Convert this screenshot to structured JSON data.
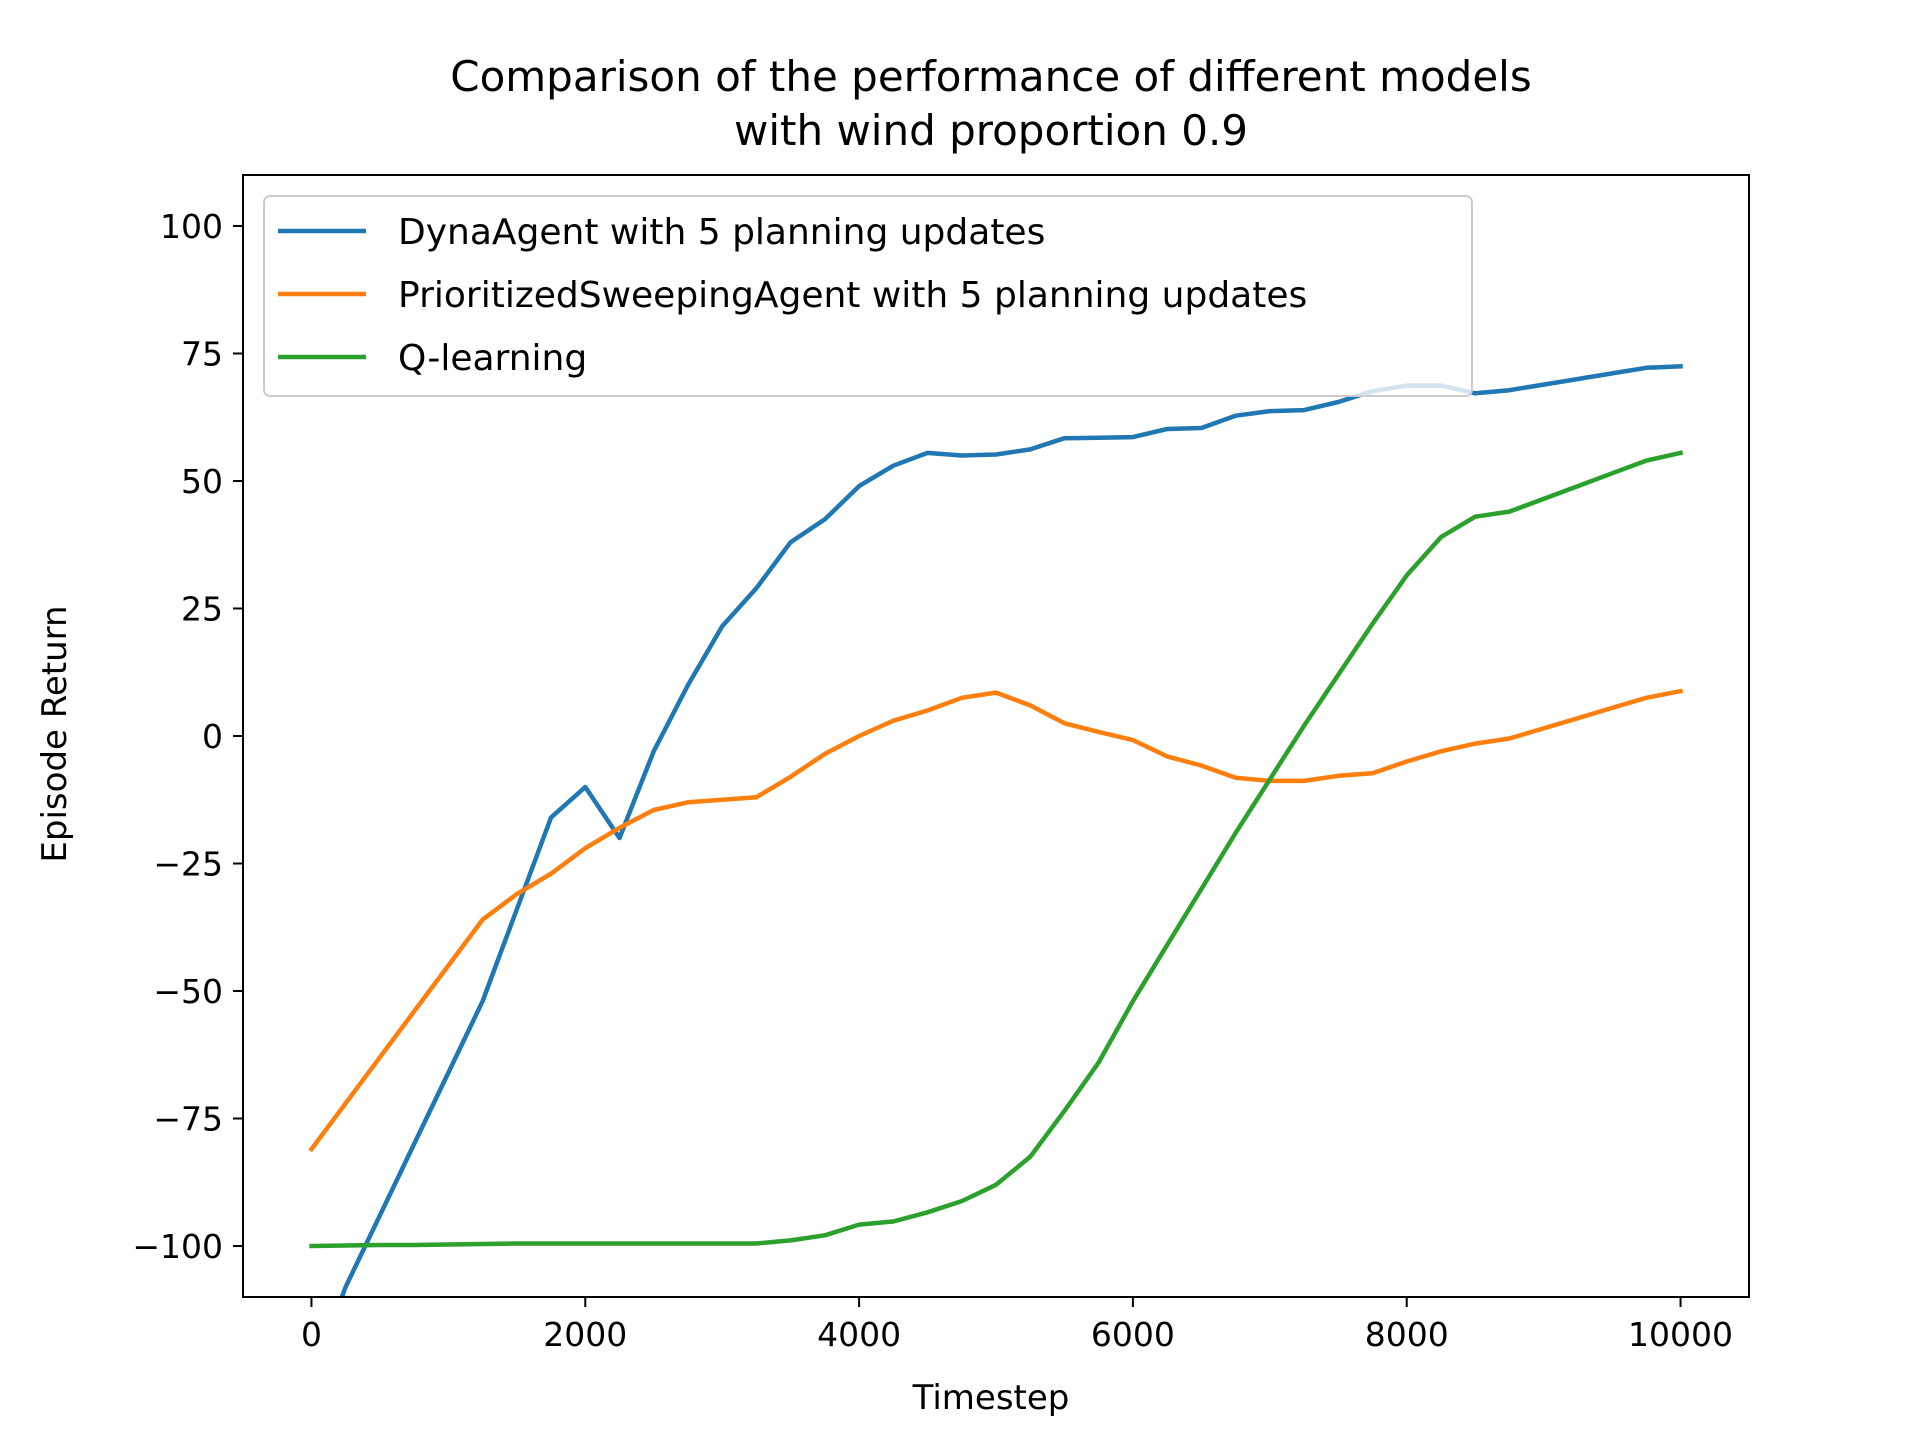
{
  "chart_data": {
    "type": "line",
    "title": "Comparison of the performance of different models\nwith wind proportion 0.9",
    "title_lines": [
      "Comparison of the performance of different models",
      "with wind proportion 0.9"
    ],
    "xlabel": "Timestep",
    "ylabel": "Episode Return",
    "xlim": [
      -500,
      10500
    ],
    "ylim": [
      -110,
      110
    ],
    "xticks": [
      0,
      2000,
      4000,
      6000,
      8000,
      10000
    ],
    "xtick_labels": [
      "0",
      "2000",
      "4000",
      "6000",
      "8000",
      "10000"
    ],
    "yticks": [
      100,
      75,
      50,
      25,
      0,
      -25,
      -50,
      -75,
      -100
    ],
    "ytick_labels": [
      "100",
      "75",
      "50",
      "25",
      "0",
      "−25",
      "−50",
      "−75",
      "−100"
    ],
    "grid": false,
    "legend_position": "top-left",
    "x": [
      0,
      250,
      500,
      750,
      1000,
      1250,
      1500,
      1750,
      2000,
      2250,
      2500,
      2750,
      3000,
      3250,
      3500,
      3750,
      4000,
      4250,
      4500,
      4750,
      5000,
      5250,
      5500,
      5750,
      6000,
      6250,
      6500,
      6750,
      7000,
      7250,
      7500,
      7750,
      8000,
      8250,
      8500,
      8750,
      9000,
      9250,
      9500,
      9750,
      10000
    ],
    "series": [
      {
        "name": "DynaAgent with 5 planning updates",
        "color": "#1f77b4",
        "values": [
          -126,
          -108,
          -94,
          -80,
          -66,
          -52,
          -34,
          -16,
          -10,
          -20,
          -3,
          10,
          21.5,
          29,
          38,
          42.5,
          49,
          53,
          55.5,
          55,
          55.2,
          56.2,
          58.4,
          58.5,
          58.6,
          60.2,
          60.4,
          62.8,
          63.7,
          63.9,
          65.5,
          67.6,
          68.7,
          68.7,
          67.2,
          67.8,
          68.9,
          70,
          71.1,
          72.2,
          72.5
        ]
      },
      {
        "name": "PrioritizedSweepingAgent with 5 planning updates",
        "color": "#ff7f0e",
        "values": [
          -81,
          -72,
          -63,
          -54,
          -45,
          -36,
          -31,
          -27,
          -22,
          -18,
          -14.5,
          -13,
          -12.5,
          -12,
          -8,
          -3.5,
          0,
          3,
          5,
          7.5,
          8.5,
          6,
          2.5,
          0.8,
          -0.8,
          -4,
          -5.8,
          -8.2,
          -8.8,
          -8.8,
          -7.8,
          -7.3,
          -5,
          -3,
          -1.5,
          -0.5,
          1.5,
          3.5,
          5.5,
          7.5,
          8.8
        ]
      },
      {
        "name": "Q-learning",
        "color": "#2ca02c",
        "values": [
          -100,
          -99.9,
          -99.8,
          -99.8,
          -99.7,
          -99.6,
          -99.5,
          -99.5,
          -99.5,
          -99.5,
          -99.5,
          -99.5,
          -99.5,
          -99.5,
          -98.9,
          -97.9,
          -95.8,
          -95.2,
          -93.4,
          -91.2,
          -88,
          -82.5,
          -73.5,
          -64,
          -52,
          -41,
          -30,
          -19,
          -8.5,
          2,
          12,
          22,
          31.5,
          39,
          43,
          44,
          46.5,
          49,
          51.5,
          54,
          55.5
        ]
      }
    ]
  }
}
